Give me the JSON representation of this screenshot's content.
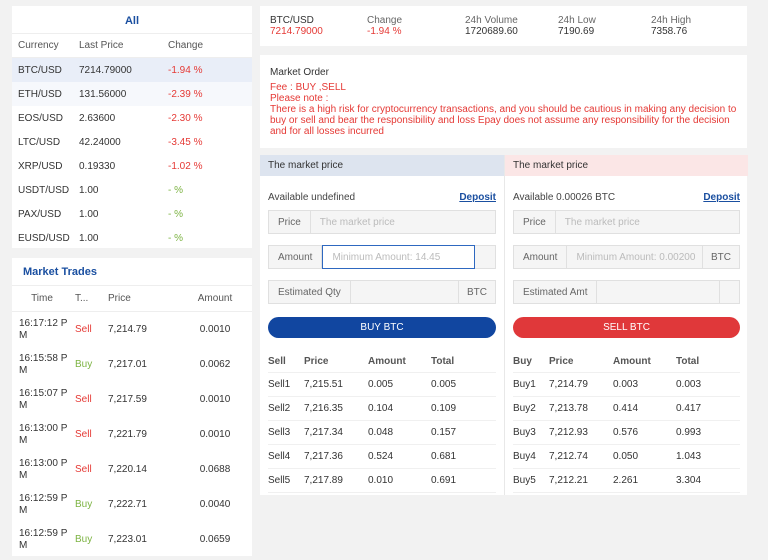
{
  "markets": {
    "tab": "All",
    "headers": [
      "Currency",
      "Last Price",
      "Change"
    ],
    "rows": [
      {
        "pair": "BTC/USD",
        "price": "7214.79000",
        "change": "-1.94 %",
        "dir": "red"
      },
      {
        "pair": "ETH/USD",
        "price": "131.56000",
        "change": "-2.39 %",
        "dir": "red"
      },
      {
        "pair": "EOS/USD",
        "price": "2.63600",
        "change": "-2.30 %",
        "dir": "red"
      },
      {
        "pair": "LTC/USD",
        "price": "42.24000",
        "change": "-3.45 %",
        "dir": "red"
      },
      {
        "pair": "XRP/USD",
        "price": "0.19330",
        "change": "-1.02 %",
        "dir": "red"
      },
      {
        "pair": "USDT/USD",
        "price": "1.00",
        "change": "- %",
        "dir": "green"
      },
      {
        "pair": "PAX/USD",
        "price": "1.00",
        "change": "- %",
        "dir": "green"
      },
      {
        "pair": "EUSD/USD",
        "price": "1.00",
        "change": "- %",
        "dir": "green"
      }
    ]
  },
  "trades": {
    "title": "Market Trades",
    "headers": [
      "Time",
      "T...",
      "Price",
      "Amount"
    ],
    "rows": [
      {
        "time": "16:17:12 P M",
        "type": "Sell",
        "dir": "red",
        "price": "7,214.79",
        "amount": "0.0010"
      },
      {
        "time": "16:15:58 P M",
        "type": "Buy",
        "dir": "green",
        "price": "7,217.01",
        "amount": "0.0062"
      },
      {
        "time": "16:15:07 P M",
        "type": "Sell",
        "dir": "red",
        "price": "7,217.59",
        "amount": "0.0010"
      },
      {
        "time": "16:13:00 P M",
        "type": "Sell",
        "dir": "red",
        "price": "7,221.79",
        "amount": "0.0010"
      },
      {
        "time": "16:13:00 P M",
        "type": "Sell",
        "dir": "red",
        "price": "7,220.14",
        "amount": "0.0688"
      },
      {
        "time": "16:12:59 P M",
        "type": "Buy",
        "dir": "green",
        "price": "7,222.71",
        "amount": "0.0040"
      },
      {
        "time": "16:12:59 P M",
        "type": "Buy",
        "dir": "green",
        "price": "7,223.01",
        "amount": "0.0659"
      }
    ]
  },
  "ticker": {
    "pair": "BTC/USD",
    "price": "7214.79000",
    "change_label": "Change",
    "change": "-1.94 %",
    "volume_label": "24h Volume",
    "volume": "1720689.60",
    "low_label": "24h Low",
    "low": "7190.69",
    "high_label": "24h High",
    "high": "7358.76"
  },
  "info": {
    "title": "Market Order",
    "fee": "Fee : BUY ,SELL",
    "note_label": "Please note :",
    "note": "There is a high risk for cryptocurrency transactions, and you should be cautious in making any decision to buy or sell and bear the responsibility and loss Epay does not assume any responsibility for the decision and for all losses incurred"
  },
  "buy": {
    "header": "The market price",
    "available": "Available undefined",
    "deposit": "Deposit",
    "price_label": "Price",
    "price_placeholder": "The market price",
    "amount_label": "Amount",
    "amount_placeholder": "Minimum Amount: 14.45",
    "qty_label": "Estimated Qty",
    "qty_unit": "BTC",
    "button": "BUY BTC",
    "book_headers": [
      "Sell",
      "Price",
      "Amount",
      "Total"
    ],
    "book": [
      {
        "name": "Sell1",
        "price": "7,215.51",
        "amount": "0.005",
        "total": "0.005"
      },
      {
        "name": "Sell2",
        "price": "7,216.35",
        "amount": "0.104",
        "total": "0.109"
      },
      {
        "name": "Sell3",
        "price": "7,217.34",
        "amount": "0.048",
        "total": "0.157"
      },
      {
        "name": "Sell4",
        "price": "7,217.36",
        "amount": "0.524",
        "total": "0.681"
      },
      {
        "name": "Sell5",
        "price": "7,217.89",
        "amount": "0.010",
        "total": "0.691"
      }
    ]
  },
  "sell": {
    "header": "The market price",
    "available": "Available 0.00026 BTC",
    "deposit": "Deposit",
    "price_label": "Price",
    "price_placeholder": "The market price",
    "amount_label": "Amount",
    "amount_placeholder": "Minimum Amount: 0.00200",
    "amount_unit": "BTC",
    "amt_label": "Estimated Amt",
    "button": "SELL BTC",
    "book_headers": [
      "Buy",
      "Price",
      "Amount",
      "Total"
    ],
    "book": [
      {
        "name": "Buy1",
        "price": "7,214.79",
        "amount": "0.003",
        "total": "0.003"
      },
      {
        "name": "Buy2",
        "price": "7,213.78",
        "amount": "0.414",
        "total": "0.417"
      },
      {
        "name": "Buy3",
        "price": "7,212.93",
        "amount": "0.576",
        "total": "0.993"
      },
      {
        "name": "Buy4",
        "price": "7,212.74",
        "amount": "0.050",
        "total": "1.043"
      },
      {
        "name": "Buy5",
        "price": "7,212.21",
        "amount": "2.261",
        "total": "3.304"
      }
    ]
  },
  "colors": {
    "red": "#e53935",
    "green": "#7cb342",
    "brand_blue": "#1146a0",
    "sell_red": "#e0383a"
  }
}
